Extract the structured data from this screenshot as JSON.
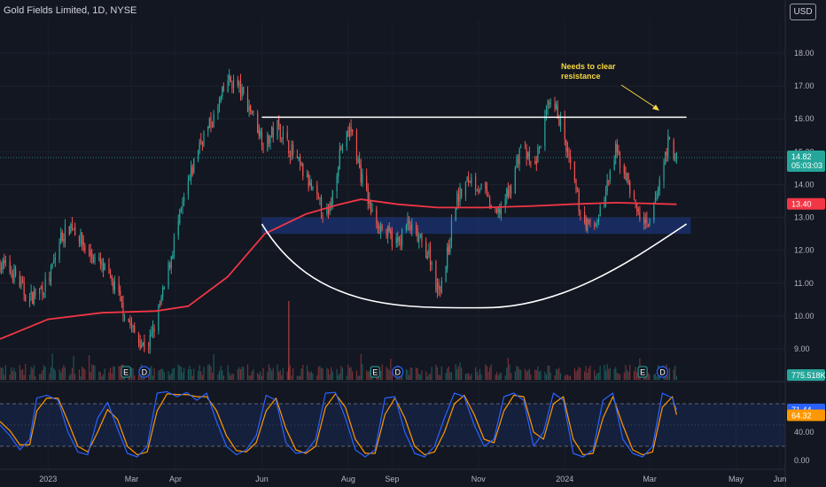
{
  "header": {
    "title": "Gold Fields Limited, 1D, NYSE",
    "currency": "USD"
  },
  "annotation": {
    "line1": "Needs to clear",
    "line2": "resistance"
  },
  "badges": {
    "last_price": "14.82",
    "countdown": "05:03:03",
    "sma": "13.40",
    "volume": "775.518K",
    "stoch_k": "71.44",
    "stoch_d": "64.32"
  },
  "colors": {
    "up": "#26a69a",
    "down": "#ef5350",
    "sma": "#f23645",
    "zone": "#2962ff",
    "stoch_k": "#2962ff",
    "stoch_d": "#ff9800",
    "annotation": "#f5d742"
  },
  "chart_data": [
    {
      "type": "candlestick",
      "title": "Gold Fields Limited, 1D, NYSE",
      "y_ticks": [
        9,
        10,
        11,
        12,
        13,
        14,
        15,
        16,
        17,
        18
      ],
      "y_tick_labels": [
        "9.00",
        "10.00",
        "11.00",
        "12.00",
        "13.00",
        "14.00",
        "15.00",
        "16.00",
        "17.00",
        "18.00"
      ],
      "ylim": [
        8.8,
        19.0
      ],
      "x_ticks": [
        "2023",
        "Mar",
        "Apr",
        "Jun",
        "Aug",
        "Sep",
        "Nov",
        "2024",
        "Mar",
        "May",
        "Jun"
      ],
      "price_path": [
        [
          "2022-11-28",
          11.6
        ],
        [
          "2022-12-08",
          11.3
        ],
        [
          "2022-12-18",
          10.5
        ],
        [
          "2023-01-01",
          11.0
        ],
        [
          "2023-01-10",
          12.4
        ],
        [
          "2023-01-18",
          12.8
        ],
        [
          "2023-01-28",
          12.0
        ],
        [
          "2023-02-08",
          11.5
        ],
        [
          "2023-02-18",
          10.8
        ],
        [
          "2023-02-25",
          10.0
        ],
        [
          "2023-03-05",
          9.3
        ],
        [
          "2023-03-12",
          9.0
        ],
        [
          "2023-03-18",
          9.8
        ],
        [
          "2023-03-25",
          11.0
        ],
        [
          "2023-04-01",
          12.5
        ],
        [
          "2023-04-10",
          14.0
        ],
        [
          "2023-04-18",
          15.3
        ],
        [
          "2023-04-28",
          16.0
        ],
        [
          "2023-05-08",
          17.2
        ],
        [
          "2023-05-15",
          17.0
        ],
        [
          "2023-05-25",
          16.2
        ],
        [
          "2023-06-03",
          15.2
        ],
        [
          "2023-06-12",
          15.8
        ],
        [
          "2023-06-22",
          15.0
        ],
        [
          "2023-07-02",
          14.2
        ],
        [
          "2023-07-10",
          13.5
        ],
        [
          "2023-07-18",
          13.0
        ],
        [
          "2023-07-26",
          15.0
        ],
        [
          "2023-08-03",
          15.7
        ],
        [
          "2023-08-10",
          14.3
        ],
        [
          "2023-08-18",
          13.1
        ],
        [
          "2023-08-28",
          12.5
        ],
        [
          "2023-09-05",
          12.2
        ],
        [
          "2023-09-12",
          12.8
        ],
        [
          "2023-09-20",
          12.3
        ],
        [
          "2023-09-28",
          11.8
        ],
        [
          "2023-10-03",
          10.8
        ],
        [
          "2023-10-08",
          11.3
        ],
        [
          "2023-10-16",
          13.5
        ],
        [
          "2023-10-26",
          14.2
        ],
        [
          "2023-11-05",
          13.8
        ],
        [
          "2023-11-13",
          13.0
        ],
        [
          "2023-11-23",
          13.8
        ],
        [
          "2023-12-01",
          15.2
        ],
        [
          "2023-12-10",
          14.4
        ],
        [
          "2023-12-20",
          16.3
        ],
        [
          "2023-12-27",
          16.2
        ],
        [
          "2024-01-05",
          14.5
        ],
        [
          "2024-01-13",
          13.0
        ],
        [
          "2024-01-21",
          12.6
        ],
        [
          "2024-01-29",
          13.6
        ],
        [
          "2024-02-06",
          15.0
        ],
        [
          "2024-02-13",
          14.3
        ],
        [
          "2024-02-21",
          13.2
        ],
        [
          "2024-02-29",
          12.6
        ],
        [
          "2024-03-07",
          13.9
        ],
        [
          "2024-03-14",
          15.3
        ],
        [
          "2024-03-20",
          14.82
        ]
      ],
      "sma_path": [
        [
          "2022-11-28",
          9.3
        ],
        [
          "2023-01-01",
          9.9
        ],
        [
          "2023-02-08",
          10.1
        ],
        [
          "2023-03-18",
          10.15
        ],
        [
          "2023-04-10",
          10.3
        ],
        [
          "2023-05-08",
          11.2
        ],
        [
          "2023-06-03",
          12.5
        ],
        [
          "2023-07-02",
          13.1
        ],
        [
          "2023-07-26",
          13.4
        ],
        [
          "2023-08-10",
          13.55
        ],
        [
          "2023-09-05",
          13.4
        ],
        [
          "2023-10-03",
          13.3
        ],
        [
          "2023-11-05",
          13.3
        ],
        [
          "2023-12-10",
          13.35
        ],
        [
          "2024-01-05",
          13.4
        ],
        [
          "2024-02-06",
          13.45
        ],
        [
          "2024-03-20",
          13.4
        ]
      ],
      "resistance": {
        "from": "2023-06-01",
        "to": "2024-03-27",
        "value": 16.05
      },
      "support_zone": {
        "from": "2023-06-01",
        "to": "2024-03-30",
        "low": 12.5,
        "high": 13.0
      },
      "cup_curve": {
        "start": [
          "2023-06-01",
          12.8
        ],
        "bottom": [
          "2023-11-05",
          10.25
        ],
        "end": [
          "2024-03-27",
          12.8
        ]
      },
      "current_price": 14.82,
      "sma_value": 13.4,
      "volume_last": "775.518K",
      "event_markers": [
        {
          "date": "2023-02-25",
          "label": "E"
        },
        {
          "date": "2023-03-10",
          "label": "D"
        },
        {
          "date": "2023-08-20",
          "label": "E"
        },
        {
          "date": "2023-09-05",
          "label": "D"
        },
        {
          "date": "2024-02-25",
          "label": "E"
        },
        {
          "date": "2024-03-10",
          "label": "D"
        }
      ]
    },
    {
      "type": "line",
      "name": "stochastic",
      "y_ticks": [
        0,
        40
      ],
      "y_tick_labels": [
        "0.00",
        "40.00"
      ],
      "ylim": [
        -5,
        105
      ],
      "levels": [
        80,
        20
      ],
      "k_value": 71.44,
      "d_value": 64.32,
      "k_path": [
        [
          "2022-11-28",
          50
        ],
        [
          "2022-12-05",
          35
        ],
        [
          "2022-12-12",
          15
        ],
        [
          "2022-12-19",
          30
        ],
        [
          "2022-12-24",
          88
        ],
        [
          "2022-12-31",
          92
        ],
        [
          "2023-01-08",
          85
        ],
        [
          "2023-01-15",
          40
        ],
        [
          "2023-01-22",
          12
        ],
        [
          "2023-01-29",
          8
        ],
        [
          "2023-02-05",
          60
        ],
        [
          "2023-02-12",
          82
        ],
        [
          "2023-02-19",
          45
        ],
        [
          "2023-02-26",
          10
        ],
        [
          "2023-03-05",
          5
        ],
        [
          "2023-03-12",
          20
        ],
        [
          "2023-03-19",
          95
        ],
        [
          "2023-03-26",
          97
        ],
        [
          "2023-04-02",
          90
        ],
        [
          "2023-04-09",
          96
        ],
        [
          "2023-04-16",
          85
        ],
        [
          "2023-04-23",
          95
        ],
        [
          "2023-04-30",
          55
        ],
        [
          "2023-05-07",
          20
        ],
        [
          "2023-05-14",
          8
        ],
        [
          "2023-05-21",
          15
        ],
        [
          "2023-05-28",
          35
        ],
        [
          "2023-06-04",
          92
        ],
        [
          "2023-06-11",
          85
        ],
        [
          "2023-06-18",
          25
        ],
        [
          "2023-06-25",
          10
        ],
        [
          "2023-07-02",
          12
        ],
        [
          "2023-07-09",
          30
        ],
        [
          "2023-07-16",
          95
        ],
        [
          "2023-07-23",
          96
        ],
        [
          "2023-07-30",
          60
        ],
        [
          "2023-08-06",
          15
        ],
        [
          "2023-08-13",
          5
        ],
        [
          "2023-08-20",
          15
        ],
        [
          "2023-08-27",
          88
        ],
        [
          "2023-09-03",
          90
        ],
        [
          "2023-09-10",
          40
        ],
        [
          "2023-09-17",
          10
        ],
        [
          "2023-09-24",
          5
        ],
        [
          "2023-10-01",
          20
        ],
        [
          "2023-10-08",
          60
        ],
        [
          "2023-10-15",
          95
        ],
        [
          "2023-10-22",
          90
        ],
        [
          "2023-10-29",
          50
        ],
        [
          "2023-11-05",
          20
        ],
        [
          "2023-11-12",
          30
        ],
        [
          "2023-11-19",
          90
        ],
        [
          "2023-11-26",
          95
        ],
        [
          "2023-12-03",
          85
        ],
        [
          "2023-12-10",
          20
        ],
        [
          "2023-12-17",
          40
        ],
        [
          "2023-12-24",
          95
        ],
        [
          "2023-12-31",
          85
        ],
        [
          "2024-01-07",
          10
        ],
        [
          "2024-01-14",
          5
        ],
        [
          "2024-01-21",
          15
        ],
        [
          "2024-01-28",
          85
        ],
        [
          "2024-02-04",
          95
        ],
        [
          "2024-02-11",
          30
        ],
        [
          "2024-02-18",
          10
        ],
        [
          "2024-02-25",
          5
        ],
        [
          "2024-03-03",
          20
        ],
        [
          "2024-03-10",
          95
        ],
        [
          "2024-03-17",
          88
        ],
        [
          "2024-03-20",
          71.44
        ]
      ],
      "d_path": [
        [
          "2022-11-28",
          55
        ],
        [
          "2022-12-05",
          42
        ],
        [
          "2022-12-12",
          22
        ],
        [
          "2022-12-19",
          22
        ],
        [
          "2022-12-24",
          70
        ],
        [
          "2022-12-31",
          88
        ],
        [
          "2023-01-08",
          88
        ],
        [
          "2023-01-15",
          55
        ],
        [
          "2023-01-22",
          20
        ],
        [
          "2023-01-29",
          12
        ],
        [
          "2023-02-05",
          40
        ],
        [
          "2023-02-12",
          72
        ],
        [
          "2023-02-19",
          58
        ],
        [
          "2023-02-26",
          20
        ],
        [
          "2023-03-05",
          8
        ],
        [
          "2023-03-12",
          12
        ],
        [
          "2023-03-19",
          70
        ],
        [
          "2023-03-26",
          94
        ],
        [
          "2023-04-02",
          93
        ],
        [
          "2023-04-09",
          93
        ],
        [
          "2023-04-16",
          90
        ],
        [
          "2023-04-23",
          90
        ],
        [
          "2023-04-30",
          70
        ],
        [
          "2023-05-07",
          35
        ],
        [
          "2023-05-14",
          14
        ],
        [
          "2023-05-21",
          12
        ],
        [
          "2023-05-28",
          25
        ],
        [
          "2023-06-04",
          70
        ],
        [
          "2023-06-11",
          88
        ],
        [
          "2023-06-18",
          45
        ],
        [
          "2023-06-25",
          15
        ],
        [
          "2023-07-02",
          10
        ],
        [
          "2023-07-09",
          20
        ],
        [
          "2023-07-16",
          75
        ],
        [
          "2023-07-23",
          94
        ],
        [
          "2023-07-30",
          75
        ],
        [
          "2023-08-06",
          30
        ],
        [
          "2023-08-13",
          10
        ],
        [
          "2023-08-20",
          10
        ],
        [
          "2023-08-27",
          65
        ],
        [
          "2023-09-03",
          88
        ],
        [
          "2023-09-10",
          60
        ],
        [
          "2023-09-17",
          20
        ],
        [
          "2023-09-24",
          8
        ],
        [
          "2023-10-01",
          12
        ],
        [
          "2023-10-08",
          40
        ],
        [
          "2023-10-15",
          80
        ],
        [
          "2023-10-22",
          92
        ],
        [
          "2023-10-29",
          65
        ],
        [
          "2023-11-05",
          30
        ],
        [
          "2023-11-12",
          25
        ],
        [
          "2023-11-19",
          70
        ],
        [
          "2023-11-26",
          92
        ],
        [
          "2023-12-03",
          90
        ],
        [
          "2023-12-10",
          40
        ],
        [
          "2023-12-17",
          30
        ],
        [
          "2023-12-24",
          80
        ],
        [
          "2023-12-31",
          90
        ],
        [
          "2024-01-07",
          30
        ],
        [
          "2024-01-14",
          8
        ],
        [
          "2024-01-21",
          10
        ],
        [
          "2024-01-28",
          60
        ],
        [
          "2024-02-04",
          90
        ],
        [
          "2024-02-11",
          50
        ],
        [
          "2024-02-18",
          15
        ],
        [
          "2024-02-25",
          8
        ],
        [
          "2024-03-03",
          12
        ],
        [
          "2024-03-10",
          75
        ],
        [
          "2024-03-17",
          90
        ],
        [
          "2024-03-20",
          64.32
        ]
      ]
    }
  ]
}
